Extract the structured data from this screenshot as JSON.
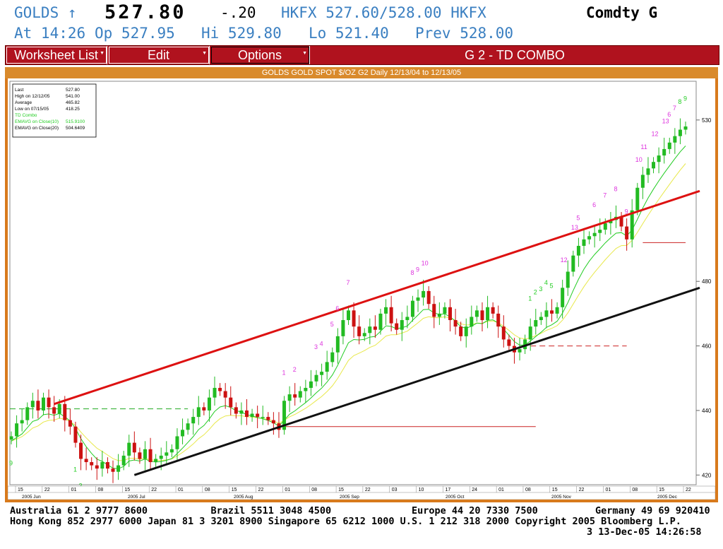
{
  "quote": {
    "ticker": "GOLDS ↑",
    "last": "527.80",
    "change": "-.20",
    "bid_ask": "HKFX 527.60/528.00 HKFX",
    "sector": "Comdty G",
    "time": "At 14:26",
    "open": "Op 527.95",
    "high": "Hi 529.80",
    "low": "Lo 521.40",
    "prev": "Prev 528.00"
  },
  "menu": {
    "worksheet": "Worksheet List",
    "edit": "Edit",
    "options": "Options",
    "title": "G  2 - TD COMBO"
  },
  "chart_data": {
    "type": "candlestick",
    "title": "GOLDS GOLD SPOT $/OZ G2 Daily 12/13/04 to 12/13/05",
    "y_ticks": [
      420,
      440,
      460,
      480,
      530
    ],
    "ylim": [
      417,
      542
    ],
    "legend": {
      "rows": [
        {
          "label": "Last",
          "value": "527.80",
          "color": "#000000"
        },
        {
          "label": "High on   12/12/05",
          "value": "541.00",
          "color": "#000000"
        },
        {
          "label": "Average",
          "value": "465.82",
          "color": "#000000"
        },
        {
          "label": "Low on   07/15/05",
          "value": "418.25",
          "color": "#000000"
        },
        {
          "label": "TD Combo",
          "value": "",
          "color": "#22cc22"
        },
        {
          "label": "EMAVG on Close(10)",
          "value": "515.9100",
          "color": "#22cc22"
        },
        {
          "label": "EMAVG on Close(20)",
          "value": "504.6409",
          "color": "#000000"
        }
      ]
    },
    "x_day_ticks": [
      "15",
      "22",
      "01",
      "08",
      "15",
      "22",
      "01",
      "08",
      "15",
      "22",
      "01",
      "08",
      "15",
      "22",
      "03",
      "10",
      "17",
      "24",
      "01",
      "08",
      "15",
      "22",
      "01",
      "08",
      "15",
      "22"
    ],
    "x_month_labels": [
      "2005 Jun",
      "2005 Jul",
      "2005 Aug",
      "2005 Sep",
      "2005 Oct",
      "2005 Nov",
      "2005 Dec"
    ],
    "closes": [
      432,
      436,
      437,
      441,
      443,
      440,
      444,
      441,
      439,
      442,
      437,
      435,
      430,
      425,
      424,
      423,
      422,
      424,
      422,
      421,
      423,
      426,
      430,
      427,
      425,
      428,
      424,
      425,
      426,
      427,
      428,
      432,
      434,
      436,
      438,
      441,
      440,
      444,
      447,
      446,
      444,
      441,
      439,
      440,
      438,
      439,
      438,
      438,
      437,
      436,
      434,
      443,
      445,
      444,
      446,
      447,
      449,
      451,
      452,
      455,
      458,
      463,
      468,
      471,
      466,
      463,
      464,
      466,
      465,
      470,
      472,
      467,
      465,
      468,
      469,
      474,
      475,
      477,
      473,
      469,
      470,
      472,
      468,
      466,
      463,
      466,
      469,
      471,
      468,
      472,
      470,
      466,
      462,
      460,
      458,
      459,
      462,
      466,
      468,
      469,
      471,
      470,
      472,
      478,
      483,
      488,
      491,
      493,
      494,
      495,
      496,
      498,
      499,
      500,
      497,
      493,
      502,
      509,
      513,
      515,
      517,
      519,
      521,
      523,
      525,
      527,
      528
    ],
    "signals": [
      {
        "t": "9",
        "i": 0,
        "c": "#22cc22"
      },
      {
        "t": "1",
        "i": 12,
        "c": "#22cc22"
      },
      {
        "t": "2",
        "i": 13,
        "c": "#22cc22"
      },
      {
        "t": "3",
        "i": 14,
        "c": "#22cc22"
      },
      {
        "t": "4",
        "i": 15,
        "c": "#22cc22"
      },
      {
        "t": "5",
        "i": 16,
        "c": "#22cc22"
      },
      {
        "t": "6",
        "i": 17,
        "c": "#22cc22"
      },
      {
        "t": "7",
        "i": 18,
        "c": "#22cc22"
      },
      {
        "t": "8",
        "i": 19,
        "c": "#22cc22"
      },
      {
        "t": "9",
        "i": 20,
        "c": "#22cc22"
      },
      {
        "t": "1",
        "i": 51,
        "c": "#dd33dd"
      },
      {
        "t": "2",
        "i": 53,
        "c": "#dd33dd"
      },
      {
        "t": "3",
        "i": 57,
        "c": "#dd33dd"
      },
      {
        "t": "4",
        "i": 58,
        "c": "#dd33dd"
      },
      {
        "t": "5",
        "i": 60,
        "c": "#dd33dd"
      },
      {
        "t": "6",
        "i": 61,
        "c": "#dd33dd"
      },
      {
        "t": "7",
        "i": 63,
        "c": "#dd33dd"
      },
      {
        "t": "8",
        "i": 75,
        "c": "#dd33dd"
      },
      {
        "t": "9",
        "i": 76,
        "c": "#dd33dd"
      },
      {
        "t": "10",
        "i": 77,
        "c": "#dd33dd"
      },
      {
        "t": "1",
        "i": 97,
        "c": "#22cc22"
      },
      {
        "t": "2",
        "i": 98,
        "c": "#22cc22"
      },
      {
        "t": "3",
        "i": 99,
        "c": "#22cc22"
      },
      {
        "t": "4",
        "i": 100,
        "c": "#22cc22"
      },
      {
        "t": "5",
        "i": 101,
        "c": "#22cc22"
      },
      {
        "t": "12",
        "i": 103,
        "c": "#dd33dd"
      },
      {
        "t": "13",
        "i": 105,
        "c": "#dd33dd"
      },
      {
        "t": "5",
        "i": 106,
        "c": "#dd33dd"
      },
      {
        "t": "6",
        "i": 109,
        "c": "#dd33dd"
      },
      {
        "t": "7",
        "i": 111,
        "c": "#dd33dd"
      },
      {
        "t": "8",
        "i": 113,
        "c": "#dd33dd"
      },
      {
        "t": "9",
        "i": 115,
        "c": "#dd33dd"
      },
      {
        "t": "10",
        "i": 117,
        "c": "#dd33dd"
      },
      {
        "t": "11",
        "i": 118,
        "c": "#dd33dd"
      },
      {
        "t": "12",
        "i": 120,
        "c": "#dd33dd"
      },
      {
        "t": "13",
        "i": 122,
        "c": "#dd33dd"
      },
      {
        "t": "6",
        "i": 123,
        "c": "#dd33dd"
      },
      {
        "t": "7",
        "i": 124,
        "c": "#dd33dd"
      },
      {
        "t": "8",
        "i": 125,
        "c": "#22cc22"
      },
      {
        "t": "9",
        "i": 126,
        "c": "#22cc22"
      }
    ],
    "trendlines": [
      {
        "color": "#dd1111",
        "i1": 8,
        "v1": 442,
        "i2": 140,
        "v2": 508
      },
      {
        "color": "#111111",
        "i1": 23,
        "v1": 420,
        "i2": 140,
        "v2": 478
      }
    ],
    "levels": [
      {
        "color": "#22aa22",
        "dash": true,
        "i1": -1,
        "i2": 33,
        "v": 440.5
      },
      {
        "color": "#cc2222",
        "dash": false,
        "i1": 51,
        "i2": 98,
        "v": 435
      },
      {
        "color": "#cc2222",
        "dash": true,
        "i1": 97,
        "i2": 115,
        "v": 460
      },
      {
        "color": "#cc2222",
        "dash": false,
        "i1": 118,
        "i2": 126,
        "v": 492
      }
    ]
  },
  "footer": {
    "line1": "Australia 61 2 9777 8600           Brazil 5511 3048 4500              Europe 44 20 7330 7500          Germany 49 69 920410",
    "line2": "Hong Kong 852 2977 6000 Japan 81 3 3201 8900 Singapore 65 6212 1000 U.S. 1 212 318 2000 Copyright 2005 Bloomberg L.P.",
    "line3": "3 13-Dec-05 14:26:58"
  }
}
